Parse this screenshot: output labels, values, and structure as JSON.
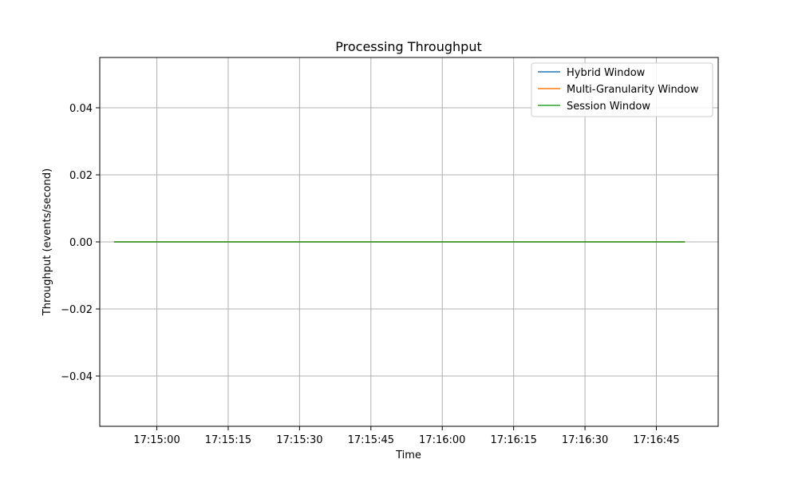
{
  "chart_data": {
    "type": "line",
    "title": "Processing Throughput",
    "xlabel": "Time",
    "ylabel": "Throughput (events/second)",
    "x_type": "time",
    "xlim": [
      "17:14:48",
      "17:16:58"
    ],
    "ylim": [
      -0.055,
      0.055
    ],
    "x_ticks": [
      "17:15:00",
      "17:15:15",
      "17:15:30",
      "17:15:45",
      "17:16:00",
      "17:16:15",
      "17:16:30",
      "17:16:45"
    ],
    "y_ticks": [
      0.04,
      0.02,
      0.0,
      -0.02,
      -0.04
    ],
    "y_tick_labels": [
      "0.04",
      "0.02",
      "0.00",
      "−0.02",
      "−0.04"
    ],
    "grid": true,
    "legend_position": "top-right",
    "series": [
      {
        "name": "Hybrid Window",
        "color": "#1f77b4",
        "x": [
          "17:14:51",
          "17:16:51"
        ],
        "y": [
          0,
          0
        ]
      },
      {
        "name": "Multi-Granularity Window",
        "color": "#ff7f0e",
        "x": [
          "17:14:51",
          "17:16:51"
        ],
        "y": [
          0,
          0
        ]
      },
      {
        "name": "Session Window",
        "color": "#2ca02c",
        "x": [
          "17:14:51",
          "17:16:51"
        ],
        "y": [
          0,
          0
        ]
      }
    ]
  }
}
